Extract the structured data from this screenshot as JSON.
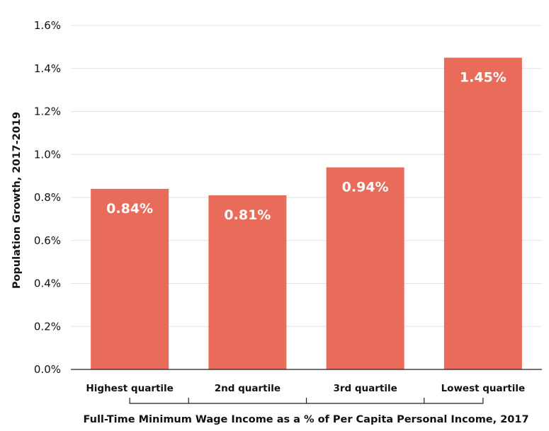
{
  "chart_data": {
    "type": "bar",
    "categories": [
      "Highest quartile",
      "2nd quartile",
      "3rd quartile",
      "Lowest quartile"
    ],
    "values": [
      0.84,
      0.81,
      0.94,
      1.45
    ],
    "data_labels": [
      "0.84%",
      "0.81%",
      "0.94%",
      "1.45%"
    ],
    "ylim": [
      0,
      1.6
    ],
    "yticks": [
      0,
      0.2,
      0.4,
      0.6,
      0.8,
      1.0,
      1.2,
      1.4,
      1.6
    ],
    "ytick_labels": [
      "0.0%",
      "0.2%",
      "0.4%",
      "0.6%",
      "0.8%",
      "1.0%",
      "1.2%",
      "1.4%",
      "1.6%"
    ],
    "xlabel": "Full-Time Minimum Wage Income as a % of Per Capita Personal Income, 2017",
    "ylabel": "Population Growth, 2017-2019",
    "grid": true,
    "bar_color": "#e96c5b"
  }
}
